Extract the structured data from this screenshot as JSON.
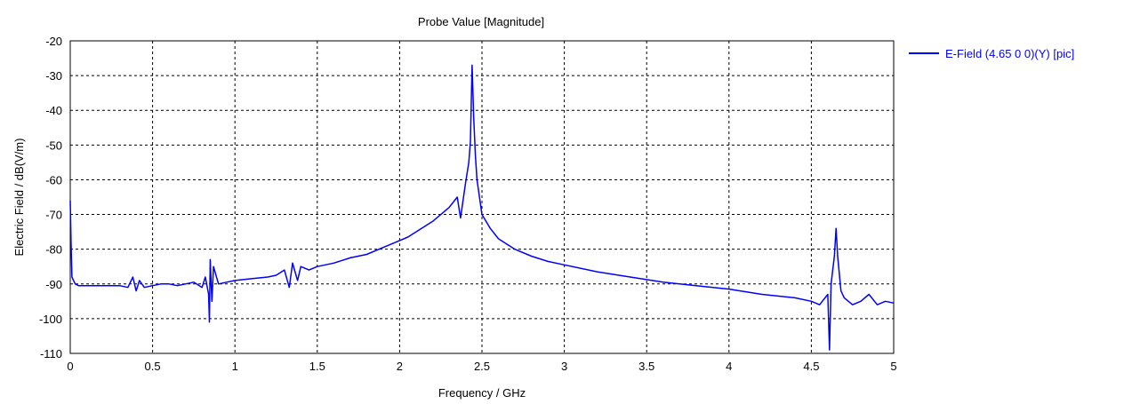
{
  "chart_data": {
    "type": "line",
    "title": "Probe Value [Magnitude]",
    "xlabel": "Frequency / GHz",
    "ylabel": "Electric Field / dB(V/m)",
    "xlim": [
      0,
      5
    ],
    "ylim": [
      -110,
      -20
    ],
    "x_ticks": [
      "0",
      "0.5",
      "1",
      "1.5",
      "2",
      "2.5",
      "3",
      "3.5",
      "4",
      "4.5",
      "5"
    ],
    "y_ticks": [
      "-20",
      "-30",
      "-40",
      "-50",
      "-60",
      "-70",
      "-80",
      "-90",
      "-100",
      "-110"
    ],
    "grid": "dashed",
    "legend_position": "right",
    "series": [
      {
        "name": "E-Field (4.65 0 0)(Y) [pic]",
        "color": "#0000ff",
        "x": [
          0,
          0.005,
          0.01,
          0.02,
          0.03,
          0.05,
          0.1,
          0.2,
          0.3,
          0.35,
          0.38,
          0.4,
          0.42,
          0.45,
          0.5,
          0.55,
          0.6,
          0.65,
          0.7,
          0.75,
          0.8,
          0.82,
          0.84,
          0.845,
          0.85,
          0.86,
          0.87,
          0.9,
          0.95,
          1.0,
          1.1,
          1.2,
          1.25,
          1.3,
          1.33,
          1.35,
          1.38,
          1.4,
          1.45,
          1.5,
          1.6,
          1.7,
          1.8,
          1.9,
          2.0,
          2.05,
          2.1,
          2.2,
          2.3,
          2.35,
          2.37,
          2.4,
          2.42,
          2.43,
          2.44,
          2.45,
          2.46,
          2.47,
          2.5,
          2.55,
          2.6,
          2.7,
          2.8,
          2.9,
          3.0,
          3.2,
          3.4,
          3.6,
          3.8,
          4.0,
          4.2,
          4.4,
          4.5,
          4.55,
          4.6,
          4.61,
          4.62,
          4.64,
          4.65,
          4.66,
          4.68,
          4.7,
          4.75,
          4.8,
          4.85,
          4.9,
          4.95,
          5.0
        ],
        "y": [
          -66,
          -78,
          -88,
          -89,
          -90,
          -90.5,
          -90.5,
          -90.5,
          -90.5,
          -91,
          -88,
          -92,
          -89,
          -91,
          -90.5,
          -90,
          -90,
          -90.5,
          -90,
          -89.5,
          -91,
          -88,
          -93,
          -101,
          -83,
          -95,
          -85,
          -90,
          -89.5,
          -89,
          -88.5,
          -88,
          -87.5,
          -86,
          -91,
          -84,
          -89,
          -85,
          -86,
          -85,
          -84,
          -82.5,
          -81.5,
          -79.5,
          -77.5,
          -76.5,
          -75,
          -72,
          -68,
          -65,
          -71,
          -61,
          -55,
          -49,
          -27,
          -42,
          -53,
          -60,
          -70,
          -74,
          -77,
          -80,
          -82,
          -83.5,
          -84.5,
          -86.5,
          -88,
          -89.5,
          -90.5,
          -91.5,
          -93,
          -94,
          -95,
          -96,
          -93,
          -109,
          -90,
          -82,
          -74,
          -82,
          -92,
          -94,
          -96,
          -95,
          -93,
          -96,
          -95,
          -95.5
        ]
      }
    ]
  }
}
